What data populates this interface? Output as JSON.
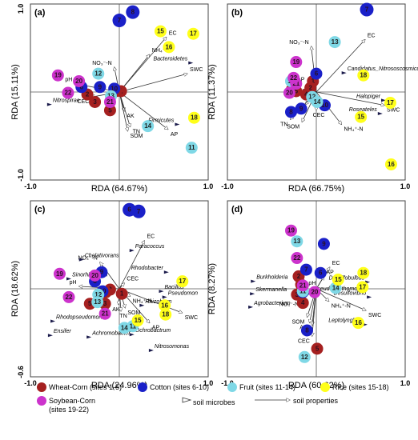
{
  "colors": {
    "wheat": "#a52020",
    "cotton": "#1a20c8",
    "fruit": "#7fd8e6",
    "rice": "#ffff1a",
    "soybean": "#cc33cc"
  },
  "legend": {
    "groups": [
      {
        "key": "wheat",
        "label": "Wheat-Corn (sites 1-5)"
      },
      {
        "key": "cotton",
        "label": "Cotton (sites 6-10)"
      },
      {
        "key": "fruit",
        "label": "Fruit (sites 11-14)"
      },
      {
        "key": "rice",
        "label": "Rice (sites 15-18)"
      },
      {
        "key": "soybean",
        "label": "Soybean-Corn",
        "label2": "(sites 19-22)"
      }
    ],
    "microbes": "soil microbes",
    "properties": "soil properties"
  },
  "chart_data": [
    {
      "type": "scatter",
      "panel": "(a)",
      "xlabel": "RDA (64.67%)",
      "ylabel": "RDA (15.11%)",
      "ticks": {
        "left": "-1.0",
        "right": "1.0",
        "top": "1.0",
        "bottom": "-1.0"
      },
      "sites": [
        {
          "n": "1",
          "g": "wheat",
          "x": 0.02,
          "y": 0.01
        },
        {
          "n": "2",
          "g": "wheat",
          "x": -0.38,
          "y": -0.03
        },
        {
          "n": "3",
          "g": "wheat",
          "x": -0.29,
          "y": -0.12
        },
        {
          "n": "4",
          "g": "wheat",
          "x": -0.04,
          "y": 0.01
        },
        {
          "n": "5",
          "g": "wheat",
          "x": -0.11,
          "y": -0.22
        },
        {
          "n": "6",
          "g": "cotton",
          "x": -0.45,
          "y": 0.06
        },
        {
          "n": "7",
          "g": "cotton",
          "x": 0.0,
          "y": 0.86
        },
        {
          "n": "8",
          "g": "cotton",
          "x": 0.16,
          "y": 0.96
        },
        {
          "n": "9",
          "g": "cotton",
          "x": -0.23,
          "y": 0.06
        },
        {
          "n": "10",
          "g": "cotton",
          "x": -0.06,
          "y": 0.04
        },
        {
          "n": "11",
          "g": "fruit",
          "x": 0.86,
          "y": -0.67
        },
        {
          "n": "12",
          "g": "fruit",
          "x": -0.25,
          "y": 0.22
        },
        {
          "n": "13",
          "g": "fruit",
          "x": -0.1,
          "y": -0.05
        },
        {
          "n": "14",
          "g": "fruit",
          "x": 0.34,
          "y": -0.41
        },
        {
          "n": "15",
          "g": "rice",
          "x": 0.49,
          "y": 0.73
        },
        {
          "n": "16",
          "g": "rice",
          "x": 0.59,
          "y": 0.54
        },
        {
          "n": "17",
          "g": "rice",
          "x": 0.88,
          "y": 0.7
        },
        {
          "n": "18",
          "g": "rice",
          "x": 0.89,
          "y": -0.31
        },
        {
          "n": "19",
          "g": "soybean",
          "x": -0.73,
          "y": 0.2
        },
        {
          "n": "20",
          "g": "soybean",
          "x": -0.48,
          "y": 0.13
        },
        {
          "n": "21",
          "g": "soybean",
          "x": -0.11,
          "y": -0.12
        },
        {
          "n": "22",
          "g": "soybean",
          "x": -0.61,
          "y": -0.01
        }
      ],
      "properties": [
        {
          "label": "EC",
          "x": 0.56,
          "y": 0.66
        },
        {
          "label": "NH₄⁺-N",
          "x": 0.36,
          "y": 0.45
        },
        {
          "label": "SWC",
          "x": 0.81,
          "y": 0.22
        },
        {
          "label": "NO₃⁻-N",
          "x": -0.06,
          "y": 0.3
        },
        {
          "label": "pH",
          "x": -0.53,
          "y": 0.1
        },
        {
          "label": "CEC",
          "x": -0.33,
          "y": -0.06
        },
        {
          "label": "AK",
          "x": 0.06,
          "y": -0.23
        },
        {
          "label": "TN",
          "x": 0.13,
          "y": -0.42
        },
        {
          "label": "SOM",
          "x": 0.1,
          "y": -0.47
        },
        {
          "label": "AP",
          "x": 0.58,
          "y": -0.45
        }
      ],
      "microbes": [
        {
          "label": "Bacteroidetes",
          "x": 0.85,
          "y": 0.35
        },
        {
          "label": "Nitrospirae",
          "x": -0.83,
          "y": -0.15
        },
        {
          "label": "Firmicutes",
          "x": 0.69,
          "y": -0.39
        }
      ]
    },
    {
      "type": "scatter",
      "panel": "(b)",
      "xlabel": "RDA (66.75%)",
      "ylabel": "RDA (11.37%)",
      "ticks": {
        "left": "-1.0",
        "right": "1.0",
        "top": "",
        "bottom": ""
      },
      "sites": [
        {
          "n": "1",
          "g": "wheat",
          "x": -0.04,
          "y": 0.13
        },
        {
          "n": "2",
          "g": "wheat",
          "x": -0.07,
          "y": 0.05
        },
        {
          "n": "3",
          "g": "wheat",
          "x": -0.29,
          "y": 0.03
        },
        {
          "n": "4",
          "g": "wheat",
          "x": -0.12,
          "y": -0.03
        },
        {
          "n": "5",
          "g": "wheat",
          "x": -0.24,
          "y": 0.01
        },
        {
          "n": "6",
          "g": "cotton",
          "x": 0.0,
          "y": 0.22
        },
        {
          "n": "7",
          "g": "cotton",
          "x": 0.6,
          "y": 0.99
        },
        {
          "n": "8",
          "g": "cotton",
          "x": -0.3,
          "y": -0.24
        },
        {
          "n": "9",
          "g": "cotton",
          "x": -0.18,
          "y": -0.2
        },
        {
          "n": "10",
          "g": "cotton",
          "x": 0.1,
          "y": -0.16
        },
        {
          "n": "11",
          "g": "fruit",
          "x": -0.3,
          "y": 0.13
        },
        {
          "n": "12",
          "g": "fruit",
          "x": -0.05,
          "y": -0.06
        },
        {
          "n": "13",
          "g": "fruit",
          "x": 0.22,
          "y": 0.6
        },
        {
          "n": "14",
          "g": "fruit",
          "x": 0.01,
          "y": -0.12
        },
        {
          "n": "15",
          "g": "rice",
          "x": 0.53,
          "y": -0.3
        },
        {
          "n": "16",
          "g": "rice",
          "x": 0.89,
          "y": -0.87
        },
        {
          "n": "17",
          "g": "rice",
          "x": 0.88,
          "y": -0.13
        },
        {
          "n": "18",
          "g": "rice",
          "x": 0.56,
          "y": 0.2
        },
        {
          "n": "19",
          "g": "soybean",
          "x": -0.24,
          "y": 0.36
        },
        {
          "n": "20",
          "g": "soybean",
          "x": -0.32,
          "y": -0.01
        },
        {
          "n": "21",
          "g": "soybean",
          "x": -0.24,
          "y": 0.1
        },
        {
          "n": "22",
          "g": "soybean",
          "x": -0.27,
          "y": 0.17
        }
      ],
      "properties": [
        {
          "label": "EC",
          "x": 0.58,
          "y": 0.63
        },
        {
          "label": "NO₃⁻-N",
          "x": -0.06,
          "y": 0.55
        },
        {
          "label": "AP",
          "x": -0.11,
          "y": 0.1
        },
        {
          "label": "pH",
          "x": -0.16,
          "y": 0.03
        },
        {
          "label": "AK",
          "x": -0.13,
          "y": -0.15
        },
        {
          "label": "TN",
          "x": -0.31,
          "y": -0.33
        },
        {
          "label": "SOM",
          "x": -0.17,
          "y": -0.36
        },
        {
          "label": "CEC",
          "x": 0.0,
          "y": -0.22
        },
        {
          "label": "NH₄⁺-N",
          "x": 0.3,
          "y": -0.39
        },
        {
          "label": "SWC",
          "x": 0.81,
          "y": -0.16
        }
      ],
      "microbes": [
        {
          "label": "Candidatus_Nitrososcosmicus",
          "x": 0.33,
          "y": 0.23
        },
        {
          "label": "Halopiger",
          "x": 0.8,
          "y": -0.1
        },
        {
          "label": "Roseateles",
          "x": 0.76,
          "y": -0.26
        }
      ]
    },
    {
      "type": "scatter",
      "panel": "(c)",
      "xlabel": "RDA (24.96%)",
      "ylabel": "RDA (18.62%)",
      "ticks": {
        "left": "-1.0",
        "right": "1.0",
        "top": "",
        "bottom": "-0.6"
      },
      "sites": [
        {
          "n": "1",
          "g": "wheat",
          "x": 0.03,
          "y": -0.06
        },
        {
          "n": "2",
          "g": "wheat",
          "x": -0.11,
          "y": -0.01
        },
        {
          "n": "3",
          "g": "wheat",
          "x": -0.17,
          "y": -0.18
        },
        {
          "n": "4",
          "g": "wheat",
          "x": -0.16,
          "y": -0.04
        },
        {
          "n": "5",
          "g": "wheat",
          "x": -0.35,
          "y": -0.18
        },
        {
          "n": "6",
          "g": "cotton",
          "x": 0.12,
          "y": 0.95
        },
        {
          "n": "7",
          "g": "cotton",
          "x": 0.23,
          "y": 0.93
        },
        {
          "n": "8",
          "g": "cotton",
          "x": -0.29,
          "y": 0.09
        },
        {
          "n": "9",
          "g": "cotton",
          "x": -0.21,
          "y": 0.2
        },
        {
          "n": "10",
          "g": "cotton",
          "x": -0.2,
          "y": -0.03
        },
        {
          "n": "11",
          "g": "fruit",
          "x": 0.16,
          "y": -0.45
        },
        {
          "n": "12",
          "g": "fruit",
          "x": -0.25,
          "y": -0.07
        },
        {
          "n": "13",
          "g": "fruit",
          "x": -0.26,
          "y": -0.16
        },
        {
          "n": "14",
          "g": "fruit",
          "x": 0.06,
          "y": -0.47
        },
        {
          "n": "15",
          "g": "rice",
          "x": 0.22,
          "y": -0.38
        },
        {
          "n": "16",
          "g": "rice",
          "x": 0.54,
          "y": -0.2
        },
        {
          "n": "17",
          "g": "rice",
          "x": 0.75,
          "y": 0.09
        },
        {
          "n": "18",
          "g": "rice",
          "x": 0.55,
          "y": -0.31
        },
        {
          "n": "19",
          "g": "soybean",
          "x": -0.71,
          "y": 0.18
        },
        {
          "n": "20",
          "g": "soybean",
          "x": -0.29,
          "y": 0.16
        },
        {
          "n": "21",
          "g": "soybean",
          "x": -0.17,
          "y": -0.3
        },
        {
          "n": "22",
          "g": "soybean",
          "x": -0.6,
          "y": -0.1
        }
      ],
      "properties": [
        {
          "label": "EC",
          "x": 0.3,
          "y": 0.58
        },
        {
          "label": "CEC",
          "x": 0.06,
          "y": 0.07
        },
        {
          "label": "NO₃⁻-N",
          "x": -0.23,
          "y": 0.32
        },
        {
          "label": "pH",
          "x": -0.48,
          "y": 0.03
        },
        {
          "label": "NH₄⁺-N",
          "x": 0.13,
          "y": -0.09
        },
        {
          "label": "TN",
          "x": 0.02,
          "y": -0.27
        },
        {
          "label": "AP",
          "x": 0.36,
          "y": -0.41
        },
        {
          "label": "SOM",
          "x": 0.07,
          "y": -0.23
        },
        {
          "label": "AK",
          "x": -0.01,
          "y": -0.19
        },
        {
          "label": "SWC",
          "x": 0.75,
          "y": -0.29
        }
      ],
      "microbes": [
        {
          "label": "Chelativorans",
          "x": -0.45,
          "y": 0.35
        },
        {
          "label": "Sinorhizobium",
          "x": -0.6,
          "y": 0.12
        },
        {
          "label": "Paracoccus",
          "x": 0.15,
          "y": 0.46
        },
        {
          "label": "Rhodobacter",
          "x": 0.56,
          "y": 0.2
        },
        {
          "label": "Bacillus",
          "x": 0.5,
          "y": -0.03
        },
        {
          "label": "Pseudomon",
          "x": 0.54,
          "y": -0.1
        },
        {
          "label": "Rhizobium",
          "x": 0.27,
          "y": -0.2
        },
        {
          "label": "Rhodopseudomonas",
          "x": -0.79,
          "y": -0.39
        },
        {
          "label": "Ensifer",
          "x": -0.82,
          "y": -0.56
        },
        {
          "label": "Achromobacter",
          "x": -0.36,
          "y": -0.58
        },
        {
          "label": "Ochrobactrum",
          "x": 0.15,
          "y": -0.55
        },
        {
          "label": "Nitrosomonas",
          "x": 0.38,
          "y": -0.74
        }
      ]
    },
    {
      "type": "scatter",
      "panel": "(d)",
      "xlabel": "RDA (60.62%)",
      "ylabel": "RDA (8.27%)",
      "ticks": {
        "left": "-1.0",
        "right": "1.0",
        "top": "",
        "bottom": ""
      },
      "sites": [
        {
          "n": "1",
          "g": "wheat",
          "x": -0.18,
          "y": 0.05
        },
        {
          "n": "2",
          "g": "wheat",
          "x": -0.21,
          "y": 0.15
        },
        {
          "n": "3",
          "g": "wheat",
          "x": -0.23,
          "y": -0.07
        },
        {
          "n": "4",
          "g": "wheat",
          "x": -0.16,
          "y": -0.17
        },
        {
          "n": "5",
          "g": "wheat",
          "x": 0.01,
          "y": -0.72
        },
        {
          "n": "6",
          "g": "cotton",
          "x": 0.05,
          "y": 0.19
        },
        {
          "n": "7",
          "g": "cotton",
          "x": -0.12,
          "y": 0.23
        },
        {
          "n": "8",
          "g": "cotton",
          "x": -0.11,
          "y": -0.5
        },
        {
          "n": "9",
          "g": "cotton",
          "x": 0.09,
          "y": 0.54
        },
        {
          "n": "10",
          "g": "cotton",
          "x": -0.16,
          "y": -0.04
        },
        {
          "n": "11",
          "g": "fruit",
          "x": -0.16,
          "y": -0.03
        },
        {
          "n": "12",
          "g": "fruit",
          "x": -0.14,
          "y": -0.82
        },
        {
          "n": "13",
          "g": "fruit",
          "x": -0.23,
          "y": 0.57
        },
        {
          "n": "14",
          "g": "fruit",
          "x": 0.23,
          "y": 0.01
        },
        {
          "n": "15",
          "g": "rice",
          "x": 0.26,
          "y": 0.11
        },
        {
          "n": "16",
          "g": "rice",
          "x": 0.5,
          "y": -0.41
        },
        {
          "n": "17",
          "g": "rice",
          "x": 0.55,
          "y": 0.02
        },
        {
          "n": "18",
          "g": "rice",
          "x": 0.56,
          "y": 0.19
        },
        {
          "n": "19",
          "g": "soybean",
          "x": -0.3,
          "y": 0.7
        },
        {
          "n": "20",
          "g": "soybean",
          "x": -0.02,
          "y": -0.04
        },
        {
          "n": "21",
          "g": "soybean",
          "x": -0.16,
          "y": 0.04
        },
        {
          "n": "22",
          "g": "soybean",
          "x": -0.23,
          "y": 0.37
        }
      ],
      "properties": [
        {
          "label": "EC",
          "x": 0.16,
          "y": 0.26
        },
        {
          "label": "AP",
          "x": 0.09,
          "y": 0.15
        },
        {
          "label": "pH",
          "x": -0.02,
          "y": 0.02
        },
        {
          "label": "SWC",
          "x": 0.59,
          "y": -0.26
        },
        {
          "label": "NH₄⁺-N",
          "x": 0.15,
          "y": -0.15
        },
        {
          "label": "NO₃⁻-N",
          "x": -0.18,
          "y": -0.13
        },
        {
          "label": "SOM",
          "x": -0.11,
          "y": -0.34
        },
        {
          "label": "AK",
          "x": -0.08,
          "y": -0.41
        },
        {
          "label": "TN",
          "x": -0.05,
          "y": -0.44
        },
        {
          "label": "CEC",
          "x": -0.05,
          "y": -0.57
        }
      ],
      "microbes": [
        {
          "label": "Burkholderia",
          "x": -0.75,
          "y": 0.09
        },
        {
          "label": "Skermanella",
          "x": -0.76,
          "y": -0.06
        },
        {
          "label": "Agrobacterium",
          "x": -0.78,
          "y": -0.22
        },
        {
          "label": "Pseudoxanthomonas",
          "x": -0.07,
          "y": -0.05
        },
        {
          "label": "Desulfobulbus",
          "x": 0.61,
          "y": 0.08
        },
        {
          "label": "Desulfovibrio",
          "x": 0.63,
          "y": -0.1
        },
        {
          "label": "Leptolyngbya",
          "x": 0.58,
          "y": -0.43
        }
      ]
    }
  ]
}
